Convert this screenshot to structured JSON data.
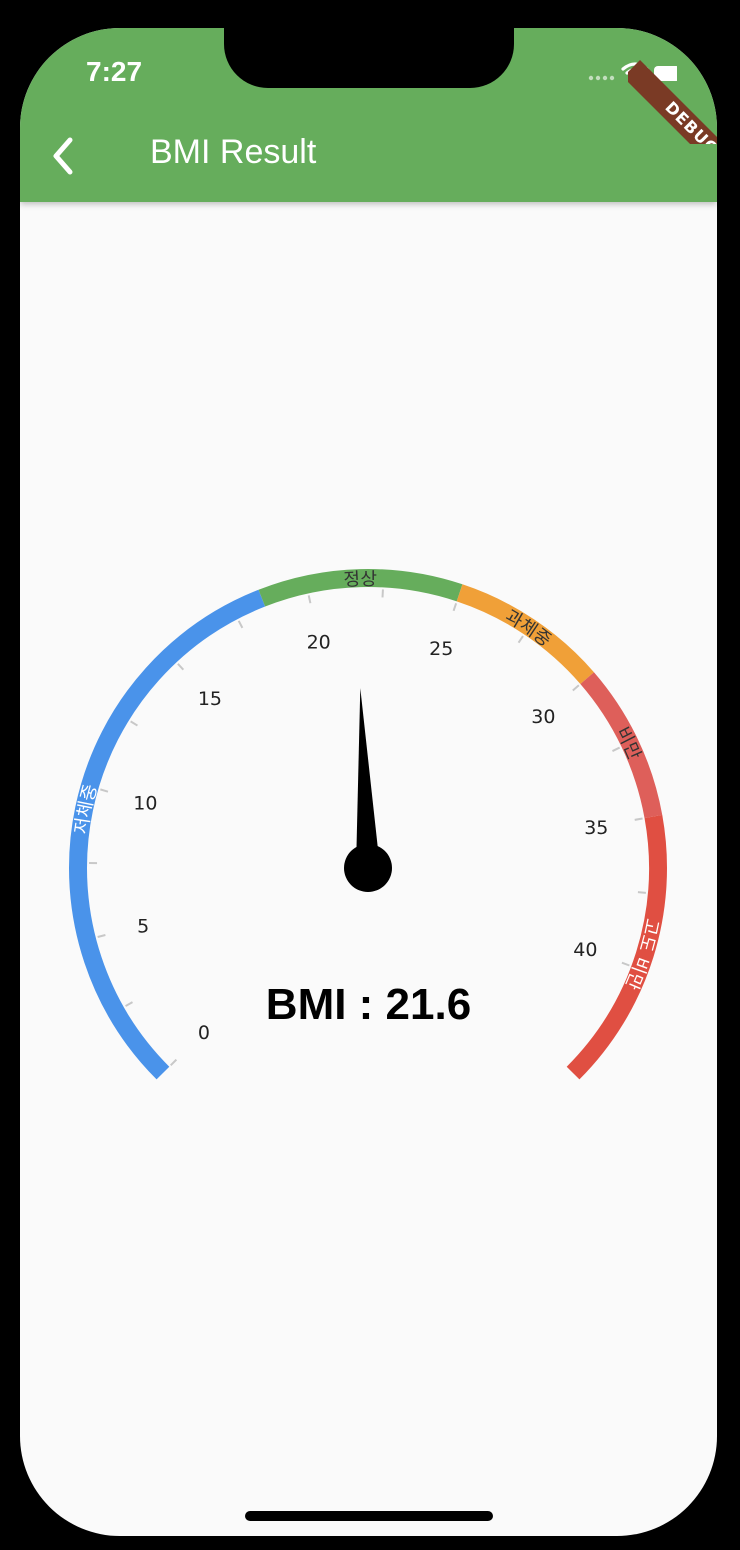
{
  "status_bar": {
    "time": "7:27"
  },
  "app_bar": {
    "title": "BMI Result",
    "back_icon": "chevron-left-icon"
  },
  "debug_banner": "DEBUG",
  "gauge": {
    "min": 0,
    "max": 44,
    "value": 21.6,
    "tick_labels": [
      "0",
      "5",
      "10",
      "15",
      "20",
      "25",
      "30",
      "35",
      "40"
    ],
    "ranges": [
      {
        "label": "저체중",
        "start": 0,
        "end": 18.5,
        "color": "#4a93ea"
      },
      {
        "label": "정상",
        "start": 18.5,
        "end": 25,
        "color": "#66ad5c"
      },
      {
        "label": "과체중",
        "start": 25,
        "end": 30,
        "color": "#f0a038"
      },
      {
        "label": "비만",
        "start": 30,
        "end": 35,
        "color": "#de5f5a"
      },
      {
        "label": "고도 비만",
        "start": 35,
        "end": 44,
        "color": "#e04f42"
      }
    ]
  },
  "result_text": "BMI : 21.6"
}
